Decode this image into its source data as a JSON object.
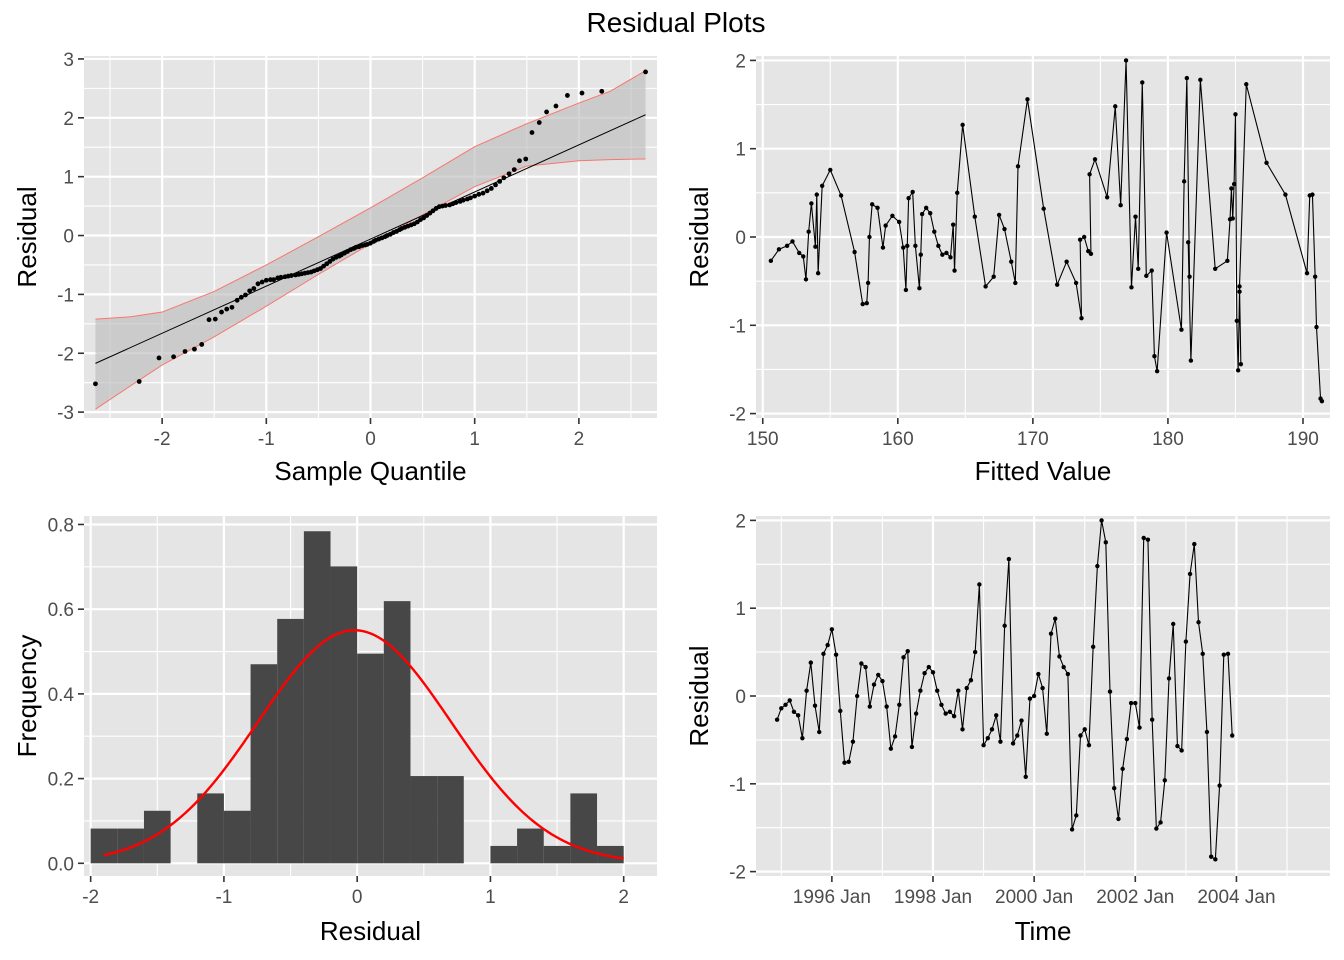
{
  "title": "Residual Plots",
  "colors": {
    "panel_bg": "#e5e5e5",
    "grid": "#ffffff",
    "points": "#000000",
    "band": "#bdbdbd",
    "band_edge": "#f8766d",
    "bars": "#474747",
    "density": "#ff0000"
  },
  "chart_data": [
    {
      "id": "qq",
      "type": "scatter",
      "xlabel": "Sample Quantile",
      "ylabel": "Residual",
      "xlim": [
        -2.75,
        2.75
      ],
      "ylim": [
        -3.1,
        3.05
      ],
      "xticks": [
        -2,
        -1,
        0,
        1,
        2
      ],
      "yticks": [
        -3,
        -2,
        -1,
        0,
        1,
        2,
        3
      ],
      "xtick_labels": [
        "-2",
        "-1",
        "0",
        "1",
        "2"
      ],
      "ytick_labels": [
        "-3",
        "-2",
        "-1",
        "0",
        "1",
        "2",
        "3"
      ],
      "reference_line": {
        "slope": 0.8,
        "intercept": -0.06
      },
      "confidence_band": {
        "x": [
          -2.64,
          -2.3,
          -2.0,
          -1.5,
          -1.0,
          -0.5,
          0,
          0.5,
          1.0,
          1.5,
          2.0,
          2.3,
          2.64
        ],
        "lower": [
          -2.95,
          -2.55,
          -2.2,
          -1.72,
          -1.2,
          -0.66,
          -0.14,
          0.35,
          0.83,
          1.18,
          1.27,
          1.29,
          1.3
        ],
        "upper": [
          -1.42,
          -1.38,
          -1.3,
          -0.95,
          -0.5,
          -0.02,
          0.47,
          0.98,
          1.51,
          1.9,
          2.25,
          2.45,
          2.8
        ]
      },
      "points": [
        [
          -2.64,
          -2.52
        ],
        [
          -2.22,
          -2.48
        ],
        [
          -2.03,
          -2.08
        ],
        [
          -1.89,
          -2.06
        ],
        [
          -1.78,
          -1.97
        ],
        [
          -1.69,
          -1.93
        ],
        [
          -1.62,
          -1.85
        ],
        [
          -1.55,
          -1.43
        ],
        [
          -1.49,
          -1.42
        ],
        [
          -1.43,
          -1.3
        ],
        [
          -1.38,
          -1.25
        ],
        [
          -1.33,
          -1.22
        ],
        [
          -1.28,
          -1.1
        ],
        [
          -1.24,
          -1.05
        ],
        [
          -1.2,
          -1.01
        ],
        [
          -1.16,
          -0.94
        ],
        [
          -1.12,
          -0.9
        ],
        [
          -1.08,
          -0.82
        ],
        [
          -1.04,
          -0.79
        ],
        [
          -1.0,
          -0.76
        ],
        [
          -0.96,
          -0.75
        ],
        [
          -0.93,
          -0.75
        ],
        [
          -0.89,
          -0.72
        ],
        [
          -0.86,
          -0.71
        ],
        [
          -0.82,
          -0.7
        ],
        [
          -0.79,
          -0.69
        ],
        [
          -0.76,
          -0.68
        ],
        [
          -0.72,
          -0.67
        ],
        [
          -0.69,
          -0.66
        ],
        [
          -0.66,
          -0.65
        ],
        [
          -0.63,
          -0.64
        ],
        [
          -0.6,
          -0.63
        ],
        [
          -0.57,
          -0.62
        ],
        [
          -0.54,
          -0.6
        ],
        [
          -0.51,
          -0.58
        ],
        [
          -0.48,
          -0.56
        ],
        [
          -0.45,
          -0.52
        ],
        [
          -0.42,
          -0.48
        ],
        [
          -0.39,
          -0.44
        ],
        [
          -0.36,
          -0.4
        ],
        [
          -0.33,
          -0.37
        ],
        [
          -0.3,
          -0.35
        ],
        [
          -0.28,
          -0.33
        ],
        [
          -0.25,
          -0.3
        ],
        [
          -0.22,
          -0.27
        ],
        [
          -0.19,
          -0.24
        ],
        [
          -0.16,
          -0.22
        ],
        [
          -0.14,
          -0.2
        ],
        [
          -0.11,
          -0.19
        ],
        [
          -0.08,
          -0.17
        ],
        [
          -0.05,
          -0.16
        ],
        [
          -0.03,
          -0.15
        ],
        [
          0.0,
          -0.13
        ],
        [
          0.03,
          -0.1
        ],
        [
          0.05,
          -0.08
        ],
        [
          0.08,
          -0.06
        ],
        [
          0.11,
          -0.04
        ],
        [
          0.14,
          -0.02
        ],
        [
          0.16,
          0.0
        ],
        [
          0.19,
          0.02
        ],
        [
          0.22,
          0.05
        ],
        [
          0.25,
          0.07
        ],
        [
          0.28,
          0.1
        ],
        [
          0.3,
          0.12
        ],
        [
          0.33,
          0.14
        ],
        [
          0.36,
          0.16
        ],
        [
          0.39,
          0.18
        ],
        [
          0.42,
          0.2
        ],
        [
          0.45,
          0.23
        ],
        [
          0.48,
          0.27
        ],
        [
          0.51,
          0.3
        ],
        [
          0.54,
          0.34
        ],
        [
          0.57,
          0.38
        ],
        [
          0.6,
          0.42
        ],
        [
          0.63,
          0.46
        ],
        [
          0.66,
          0.49
        ],
        [
          0.69,
          0.5
        ],
        [
          0.72,
          0.51
        ],
        [
          0.76,
          0.52
        ],
        [
          0.79,
          0.54
        ],
        [
          0.82,
          0.56
        ],
        [
          0.86,
          0.58
        ],
        [
          0.89,
          0.6
        ],
        [
          0.93,
          0.62
        ],
        [
          0.96,
          0.64
        ],
        [
          1.0,
          0.67
        ],
        [
          1.04,
          0.7
        ],
        [
          1.08,
          0.72
        ],
        [
          1.12,
          0.76
        ],
        [
          1.16,
          0.8
        ],
        [
          1.2,
          0.86
        ],
        [
          1.24,
          0.92
        ],
        [
          1.28,
          0.98
        ],
        [
          1.33,
          1.05
        ],
        [
          1.38,
          1.12
        ],
        [
          1.43,
          1.27
        ],
        [
          1.49,
          1.3
        ],
        [
          1.55,
          1.75
        ],
        [
          1.62,
          1.92
        ],
        [
          1.69,
          2.1
        ],
        [
          1.78,
          2.2
        ],
        [
          1.89,
          2.38
        ],
        [
          2.03,
          2.42
        ],
        [
          2.22,
          2.45
        ],
        [
          2.64,
          2.78
        ]
      ]
    },
    {
      "id": "fitted",
      "type": "line",
      "xlabel": "Fitted Value",
      "ylabel": "Residual",
      "xlim": [
        149.5,
        192
      ],
      "ylim": [
        -2.05,
        2.05
      ],
      "xticks": [
        150,
        160,
        170,
        180,
        190
      ],
      "yticks": [
        -2,
        -1,
        0,
        1,
        2
      ],
      "xtick_labels": [
        "150",
        "160",
        "170",
        "180",
        "190"
      ],
      "ytick_labels": [
        "-2",
        "-1",
        "0",
        "1",
        "2"
      ],
      "points": [
        [
          150.6,
          -0.27
        ],
        [
          151.2,
          -0.14
        ],
        [
          151.8,
          -0.1
        ],
        [
          152.2,
          -0.05
        ],
        [
          152.7,
          -0.18
        ],
        [
          153.0,
          -0.22
        ],
        [
          153.2,
          -0.48
        ],
        [
          153.4,
          0.06
        ],
        [
          153.6,
          0.38
        ],
        [
          153.9,
          -0.11
        ],
        [
          154.0,
          0.48
        ],
        [
          154.1,
          -0.41
        ],
        [
          154.4,
          0.58
        ],
        [
          155.0,
          0.76
        ],
        [
          155.8,
          0.47
        ],
        [
          156.8,
          -0.17
        ],
        [
          157.4,
          -0.76
        ],
        [
          157.7,
          -0.75
        ],
        [
          157.8,
          -0.52
        ],
        [
          157.9,
          0.0
        ],
        [
          158.1,
          0.37
        ],
        [
          158.5,
          0.33
        ],
        [
          158.9,
          -0.12
        ],
        [
          159.1,
          0.13
        ],
        [
          159.6,
          0.24
        ],
        [
          160.1,
          0.17
        ],
        [
          160.4,
          -0.12
        ],
        [
          160.6,
          -0.6
        ],
        [
          160.7,
          -0.1
        ],
        [
          160.8,
          0.44
        ],
        [
          161.1,
          0.51
        ],
        [
          161.3,
          -0.1
        ],
        [
          161.6,
          -0.58
        ],
        [
          161.7,
          -0.2
        ],
        [
          161.8,
          0.26
        ],
        [
          162.1,
          0.33
        ],
        [
          162.4,
          0.27
        ],
        [
          162.7,
          0.06
        ],
        [
          163.0,
          -0.1
        ],
        [
          163.3,
          -0.2
        ],
        [
          163.6,
          -0.18
        ],
        [
          163.9,
          -0.23
        ],
        [
          164.1,
          0.14
        ],
        [
          164.2,
          -0.38
        ],
        [
          164.4,
          0.5
        ],
        [
          164.8,
          1.27
        ],
        [
          165.7,
          0.23
        ],
        [
          166.5,
          -0.56
        ],
        [
          167.1,
          -0.45
        ],
        [
          167.5,
          0.25
        ],
        [
          167.9,
          0.09
        ],
        [
          168.4,
          -0.28
        ],
        [
          168.7,
          -0.52
        ],
        [
          168.9,
          0.8
        ],
        [
          169.6,
          1.56
        ],
        [
          170.8,
          0.32
        ],
        [
          171.8,
          -0.54
        ],
        [
          172.5,
          -0.28
        ],
        [
          173.2,
          -0.52
        ],
        [
          173.6,
          -0.92
        ],
        [
          173.5,
          -0.03
        ],
        [
          173.8,
          0.0
        ],
        [
          174.1,
          -0.16
        ],
        [
          174.3,
          -0.19
        ],
        [
          174.2,
          0.71
        ],
        [
          174.6,
          0.88
        ],
        [
          175.5,
          0.45
        ],
        [
          176.1,
          1.48
        ],
        [
          176.5,
          0.36
        ],
        [
          176.9,
          2.0
        ],
        [
          177.3,
          -0.57
        ],
        [
          177.6,
          0.23
        ],
        [
          177.8,
          -0.36
        ],
        [
          178.1,
          1.75
        ],
        [
          178.4,
          -0.44
        ],
        [
          178.8,
          -0.38
        ],
        [
          179.0,
          -1.35
        ],
        [
          179.2,
          -1.52
        ],
        [
          179.9,
          0.05
        ],
        [
          181.0,
          -1.05
        ],
        [
          181.2,
          0.63
        ],
        [
          181.4,
          1.8
        ],
        [
          181.6,
          -0.45
        ],
        [
          181.5,
          -0.06
        ],
        [
          181.7,
          -1.4
        ],
        [
          182.4,
          1.78
        ],
        [
          183.5,
          -0.36
        ],
        [
          184.4,
          -0.27
        ],
        [
          184.6,
          0.2
        ],
        [
          184.7,
          0.55
        ],
        [
          184.8,
          0.21
        ],
        [
          184.9,
          0.6
        ],
        [
          185.0,
          1.39
        ],
        [
          185.1,
          -0.95
        ],
        [
          185.2,
          -1.51
        ],
        [
          185.3,
          -0.62
        ],
        [
          185.4,
          -1.44
        ],
        [
          185.3,
          -0.56
        ],
        [
          185.8,
          1.73
        ],
        [
          187.3,
          0.84
        ],
        [
          188.7,
          0.48
        ],
        [
          190.3,
          -0.41
        ],
        [
          190.5,
          0.47
        ],
        [
          190.7,
          0.48
        ],
        [
          190.9,
          -0.45
        ],
        [
          191.0,
          -1.02
        ],
        [
          191.3,
          -1.83
        ],
        [
          191.4,
          -1.86
        ]
      ]
    },
    {
      "id": "histogram",
      "type": "bar",
      "xlabel": "Residual",
      "ylabel": "Frequency",
      "xlim": [
        -2.05,
        2.25
      ],
      "ylim": [
        -0.03,
        0.82
      ],
      "xticks": [
        -2,
        -1,
        0,
        1,
        2
      ],
      "yticks": [
        0.0,
        0.2,
        0.4,
        0.6,
        0.8
      ],
      "xtick_labels": [
        "-2",
        "-1",
        "0",
        "1",
        "2"
      ],
      "ytick_labels": [
        "0.0",
        "0.2",
        "0.4",
        "0.6",
        "0.8"
      ],
      "bin_width": 0.2,
      "bins": [
        [
          -1.9,
          0.082
        ],
        [
          -1.7,
          0.082
        ],
        [
          -1.5,
          0.124
        ],
        [
          -1.3,
          0.0
        ],
        [
          -1.1,
          0.165
        ],
        [
          -0.9,
          0.124
        ],
        [
          -0.7,
          0.47
        ],
        [
          -0.5,
          0.577
        ],
        [
          -0.3,
          0.784
        ],
        [
          -0.1,
          0.701
        ],
        [
          0.1,
          0.495
        ],
        [
          0.3,
          0.619
        ],
        [
          0.5,
          0.206
        ],
        [
          0.7,
          0.206
        ],
        [
          0.9,
          0.0
        ],
        [
          1.1,
          0.041
        ],
        [
          1.3,
          0.082
        ],
        [
          1.5,
          0.041
        ],
        [
          1.7,
          0.165
        ],
        [
          1.9,
          0.041
        ]
      ],
      "density_curve": {
        "type": "normal",
        "mean": -0.02,
        "sd": 0.725,
        "x_range": [
          -1.9,
          2.0
        ]
      }
    },
    {
      "id": "time",
      "type": "line",
      "xlabel": "Time",
      "ylabel": "Residual",
      "xlim": [
        1994.5,
        2005.85
      ],
      "ylim": [
        -2.05,
        2.05
      ],
      "xticks": [
        1996,
        1998,
        2000,
        2002,
        2004
      ],
      "yticks": [
        -2,
        -1,
        0,
        1,
        2
      ],
      "xtick_labels": [
        "1996 Jan",
        "1998 Jan",
        "2000 Jan",
        "2002 Jan",
        "2004 Jan"
      ],
      "ytick_labels": [
        "-2",
        "-1",
        "0",
        "1",
        "2"
      ],
      "start": 1994.917,
      "step": 0.08333,
      "values": [
        -0.27,
        -0.14,
        -0.1,
        -0.05,
        -0.18,
        -0.22,
        -0.48,
        0.06,
        0.38,
        -0.11,
        -0.41,
        0.48,
        0.58,
        0.76,
        0.47,
        -0.17,
        -0.76,
        -0.75,
        -0.52,
        0.0,
        0.37,
        0.33,
        -0.12,
        0.13,
        0.24,
        0.17,
        -0.12,
        -0.6,
        -0.46,
        -0.1,
        0.44,
        0.51,
        -0.58,
        -0.2,
        0.06,
        0.26,
        0.33,
        0.27,
        0.06,
        -0.1,
        -0.2,
        -0.18,
        -0.23,
        0.06,
        -0.38,
        0.09,
        0.18,
        0.5,
        1.27,
        -0.56,
        -0.48,
        -0.38,
        -0.22,
        -0.52,
        0.8,
        1.56,
        -0.54,
        -0.45,
        -0.28,
        -0.92,
        -0.03,
        0.0,
        0.25,
        0.09,
        -0.43,
        0.71,
        0.88,
        0.45,
        0.33,
        0.25,
        -1.52,
        -1.36,
        -0.45,
        -0.38,
        -0.56,
        0.56,
        1.48,
        2.0,
        1.75,
        0.05,
        -1.05,
        -1.4,
        -0.83,
        -0.49,
        -0.08,
        -0.08,
        -0.36,
        1.8,
        1.78,
        -0.27,
        -1.51,
        -1.44,
        -0.96,
        0.2,
        0.82,
        -0.57,
        -0.62,
        0.62,
        1.39,
        1.73,
        0.84,
        0.48,
        -0.41,
        -1.83,
        -1.86,
        -1.02,
        0.47,
        0.48,
        -0.45
      ]
    }
  ]
}
